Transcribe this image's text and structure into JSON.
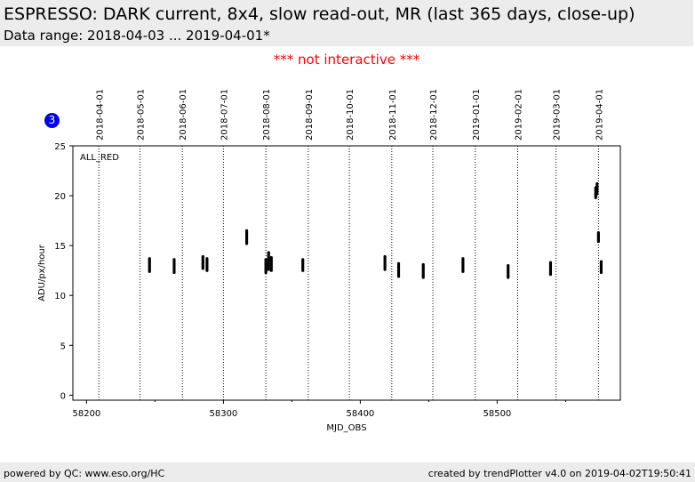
{
  "header": {
    "title": "ESPRESSO: DARK current, 8x4, slow read-out, MR (last 365 days, close-up)",
    "subtitle": "Data range: 2018-04-03 ... 2019-04-01*"
  },
  "notice": "*** not interactive ***",
  "badge": "3",
  "footer": {
    "left": "powered by QC: www.eso.org/HC",
    "right": "created by trendPlotter v4.0 on 2019-04-02T19:50:41"
  },
  "colors": {
    "header_bg": "#ececec",
    "notice": "#ff0000",
    "badge": "#0000ee",
    "points": "#000000"
  },
  "chart_data": {
    "type": "scatter",
    "xlabel": "MJD_OBS",
    "ylabel": "ADU/px/hour",
    "xlim": [
      58190,
      58590
    ],
    "ylim": [
      -0.5,
      25
    ],
    "x_ticks": [
      58200,
      58300,
      58400,
      58500
    ],
    "y_ticks": [
      0,
      5,
      10,
      15,
      20,
      25
    ],
    "panel_label": "ALL_RED",
    "date_markers": [
      {
        "label": "2018-04-01",
        "mjd": 58209
      },
      {
        "label": "2018-05-01",
        "mjd": 58239
      },
      {
        "label": "2018-06-01",
        "mjd": 58270
      },
      {
        "label": "2018-07-01",
        "mjd": 58300
      },
      {
        "label": "2018-08-01",
        "mjd": 58331
      },
      {
        "label": "2018-09-01",
        "mjd": 58362
      },
      {
        "label": "2018-10-01",
        "mjd": 58392
      },
      {
        "label": "2018-11-01",
        "mjd": 58423
      },
      {
        "label": "2018-12-01",
        "mjd": 58453
      },
      {
        "label": "2019-01-01",
        "mjd": 58484
      },
      {
        "label": "2019-02-01",
        "mjd": 58515
      },
      {
        "label": "2019-03-01",
        "mjd": 58543
      },
      {
        "label": "2019-04-01",
        "mjd": 58574
      }
    ],
    "clusters": [
      {
        "x": 58246,
        "ymin": 12.4,
        "ymax": 13.7
      },
      {
        "x": 58264,
        "ymin": 12.3,
        "ymax": 13.6
      },
      {
        "x": 58285,
        "ymin": 12.7,
        "ymax": 13.9
      },
      {
        "x": 58288,
        "ymin": 12.5,
        "ymax": 13.7
      },
      {
        "x": 58317,
        "ymin": 15.2,
        "ymax": 16.5
      },
      {
        "x": 58331,
        "ymin": 12.3,
        "ymax": 13.6
      },
      {
        "x": 58333,
        "ymin": 12.6,
        "ymax": 14.3
      },
      {
        "x": 58335,
        "ymin": 12.5,
        "ymax": 13.8
      },
      {
        "x": 58358,
        "ymin": 12.5,
        "ymax": 13.6
      },
      {
        "x": 58418,
        "ymin": 12.6,
        "ymax": 13.9
      },
      {
        "x": 58428,
        "ymin": 11.9,
        "ymax": 13.2
      },
      {
        "x": 58446,
        "ymin": 11.8,
        "ymax": 13.1
      },
      {
        "x": 58475,
        "ymin": 12.4,
        "ymax": 13.7
      },
      {
        "x": 58508,
        "ymin": 11.8,
        "ymax": 13.0
      },
      {
        "x": 58539,
        "ymin": 12.1,
        "ymax": 13.3
      },
      {
        "x": 58572,
        "ymin": 19.8,
        "ymax": 20.8
      },
      {
        "x": 58573,
        "ymin": 20.2,
        "ymax": 21.2
      },
      {
        "x": 58574,
        "ymin": 15.4,
        "ymax": 16.3
      },
      {
        "x": 58576,
        "ymin": 12.3,
        "ymax": 13.4
      }
    ]
  }
}
